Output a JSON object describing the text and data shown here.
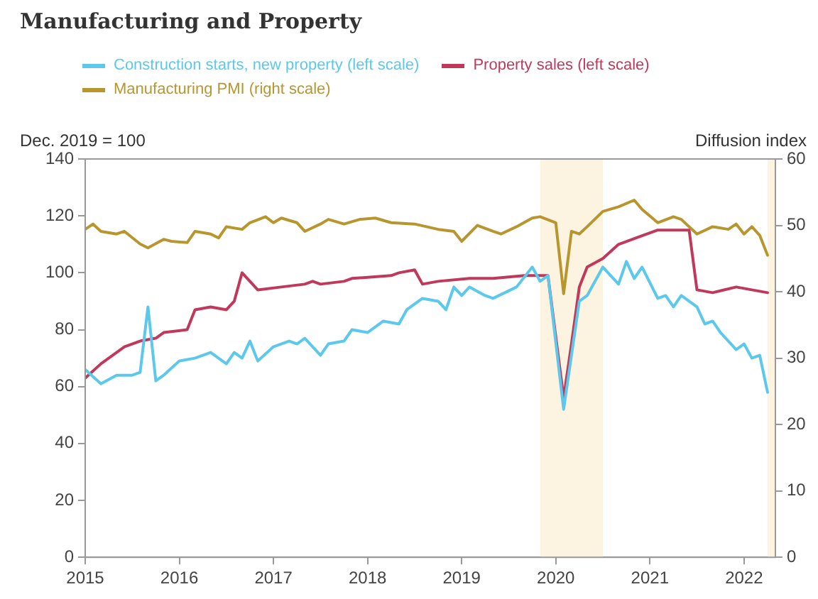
{
  "chart_data": {
    "type": "line",
    "title": "Manufacturing and Property",
    "ylabel": "Dec. 2019 = 100",
    "y2label": "Diffusion index",
    "legend": "top",
    "grid": false,
    "marker": "none",
    "line_style": "solid",
    "xlim": [
      "2015-01",
      "2022-05"
    ],
    "xticks": [
      "2015",
      "2016",
      "2017",
      "2018",
      "2019",
      "2020",
      "2021",
      "2022"
    ],
    "ylim": [
      0,
      140
    ],
    "yticks": [
      0,
      20,
      40,
      60,
      80,
      100,
      120,
      140
    ],
    "y2lim": [
      0,
      60
    ],
    "y2ticks": [
      0,
      10,
      20,
      30,
      40,
      50,
      60
    ],
    "bands": [
      {
        "axis": "x",
        "from": "2019-11",
        "to": "2020-07",
        "color": "#fdf3e1"
      },
      {
        "axis": "x",
        "from": "2022-04",
        "to": "2022-05",
        "color": "#fdf3e1"
      }
    ],
    "series": [
      {
        "name": "Construction starts, new property (left scale)",
        "color": "#5bc8ec",
        "x": [
          "2015-01",
          "2015-03",
          "2015-05",
          "2015-07",
          "2015-08",
          "2015-09",
          "2015-10",
          "2015-11",
          "2016-01",
          "2016-03",
          "2016-05",
          "2016-07",
          "2016-08",
          "2016-09",
          "2016-10",
          "2016-11",
          "2017-01",
          "2017-03",
          "2017-04",
          "2017-05",
          "2017-07",
          "2017-08",
          "2017-10",
          "2017-11",
          "2018-01",
          "2018-03",
          "2018-05",
          "2018-06",
          "2018-08",
          "2018-10",
          "2018-11",
          "2018-12",
          "2019-01",
          "2019-02",
          "2019-04",
          "2019-05",
          "2019-08",
          "2019-10",
          "2019-11",
          "2019-12",
          "2020-02",
          "2020-03",
          "2020-04",
          "2020-05",
          "2020-07",
          "2020-09",
          "2020-10",
          "2020-11",
          "2020-12",
          "2021-02",
          "2021-03",
          "2021-04",
          "2021-05",
          "2021-07",
          "2021-08",
          "2021-09",
          "2021-10",
          "2021-12",
          "2022-01",
          "2022-02",
          "2022-03",
          "2022-04"
        ],
        "values": [
          66,
          61,
          64,
          64,
          65,
          88,
          62,
          64,
          69,
          70,
          72,
          68,
          72,
          70,
          76,
          69,
          74,
          76,
          75,
          77,
          71,
          75,
          76,
          80,
          79,
          83,
          82,
          87,
          91,
          90,
          87,
          95,
          92,
          95,
          92,
          91,
          95,
          102,
          97,
          99,
          52,
          71,
          90,
          92,
          102,
          96,
          104,
          98,
          102,
          91,
          92,
          88,
          92,
          88,
          82,
          83,
          79,
          73,
          75,
          70,
          71,
          58
        ]
      },
      {
        "name": "Property sales (left scale)",
        "color": "#c0395a",
        "x": [
          "2015-01",
          "2015-03",
          "2015-06",
          "2015-08",
          "2015-10",
          "2015-11",
          "2016-02",
          "2016-03",
          "2016-05",
          "2016-07",
          "2016-08",
          "2016-09",
          "2016-11",
          "2017-02",
          "2017-05",
          "2017-06",
          "2017-07",
          "2017-10",
          "2017-11",
          "2018-04",
          "2018-05",
          "2018-07",
          "2018-08",
          "2018-10",
          "2019-02",
          "2019-05",
          "2019-09",
          "2019-12",
          "2020-02",
          "2020-03",
          "2020-04",
          "2020-05",
          "2020-07",
          "2020-09",
          "2020-12",
          "2021-02",
          "2021-04",
          "2021-06",
          "2021-07",
          "2021-09",
          "2021-12",
          "2022-02",
          "2022-04"
        ],
        "values": [
          63,
          68,
          74,
          76,
          77,
          79,
          80,
          87,
          88,
          87,
          90,
          100,
          94,
          95,
          96,
          97,
          96,
          97,
          98,
          99,
          100,
          101,
          96,
          97,
          98,
          98,
          99,
          99,
          56,
          75,
          95,
          102,
          105,
          110,
          113,
          115,
          115,
          115,
          94,
          93,
          95,
          94,
          93
        ]
      },
      {
        "name": "Manufacturing PMI (right scale)",
        "color": "#b8962e",
        "axis": "y2",
        "x": [
          "2015-01",
          "2015-02",
          "2015-03",
          "2015-05",
          "2015-06",
          "2015-08",
          "2015-09",
          "2015-11",
          "2015-12",
          "2016-02",
          "2016-03",
          "2016-05",
          "2016-06",
          "2016-07",
          "2016-09",
          "2016-10",
          "2016-12",
          "2017-01",
          "2017-02",
          "2017-04",
          "2017-05",
          "2017-07",
          "2017-08",
          "2017-10",
          "2017-12",
          "2018-02",
          "2018-04",
          "2018-07",
          "2018-10",
          "2018-12",
          "2019-01",
          "2019-03",
          "2019-05",
          "2019-06",
          "2019-08",
          "2019-10",
          "2019-11",
          "2020-01",
          "2020-02",
          "2020-03",
          "2020-04",
          "2020-05",
          "2020-07",
          "2020-09",
          "2020-11",
          "2020-12",
          "2021-02",
          "2021-04",
          "2021-05",
          "2021-07",
          "2021-09",
          "2021-11",
          "2021-12",
          "2022-01",
          "2022-02",
          "2022-03",
          "2022-04"
        ],
        "values": [
          49.4,
          50.2,
          49.1,
          48.7,
          49.1,
          47.2,
          46.6,
          47.9,
          47.6,
          47.4,
          49.1,
          48.7,
          48.1,
          49.8,
          49.4,
          50.4,
          51.3,
          50.4,
          51.1,
          50.4,
          49.1,
          50.2,
          50.9,
          50.2,
          50.9,
          51.1,
          50.4,
          50.2,
          49.4,
          49.1,
          47.6,
          50.0,
          49.1,
          48.7,
          49.8,
          51.1,
          51.3,
          50.4,
          39.7,
          49.1,
          48.7,
          49.8,
          52.1,
          52.8,
          53.8,
          52.4,
          50.4,
          51.3,
          50.9,
          48.7,
          49.8,
          49.4,
          50.2,
          48.7,
          49.8,
          48.5,
          45.5
        ]
      }
    ]
  }
}
